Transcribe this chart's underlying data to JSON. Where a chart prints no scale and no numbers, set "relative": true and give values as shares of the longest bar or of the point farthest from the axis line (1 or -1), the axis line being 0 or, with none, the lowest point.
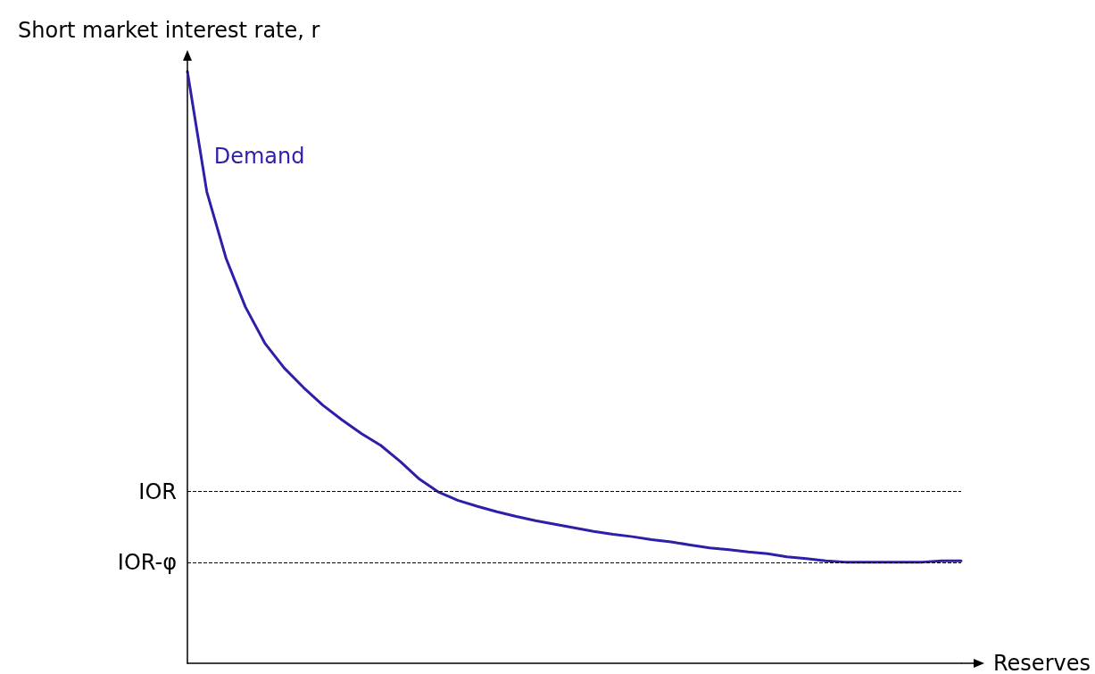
{
  "chart_data": {
    "type": "line",
    "relative": true,
    "ylabel": "Short market interest rate, r",
    "xlabel": "Reserves",
    "categories": [
      null,
      null,
      null,
      null,
      null,
      null,
      null,
      null,
      null,
      null,
      null,
      null,
      null,
      null,
      null,
      null,
      null,
      null,
      null,
      null,
      null,
      null,
      null,
      null,
      null,
      null,
      null,
      null,
      null,
      null,
      null,
      null,
      null,
      null,
      null,
      null,
      null,
      null,
      null,
      null,
      null
    ],
    "series": [
      {
        "name": "Demand",
        "color": "#2e1fa8",
        "values": [
          1.0,
          0.797,
          0.684,
          0.602,
          0.541,
          0.499,
          0.466,
          0.436,
          0.411,
          0.388,
          0.368,
          0.341,
          0.311,
          0.289,
          0.275,
          0.265,
          0.256,
          0.248,
          0.241,
          0.235,
          0.229,
          0.223,
          0.218,
          0.214,
          0.209,
          0.205,
          0.2,
          0.195,
          0.192,
          0.188,
          0.185,
          0.18,
          0.177,
          0.173,
          0.171,
          0.171,
          0.171,
          0.171,
          0.171,
          0.173,
          0.173
        ]
      }
    ],
    "ref_lines": [
      {
        "axis": "y",
        "value": 0.29,
        "label": "IOR",
        "color": "#000000",
        "line_style": "dashed"
      },
      {
        "axis": "y",
        "value": 0.171,
        "label": "IOR-φ",
        "color": "#000000",
        "line_style": "dashed"
      }
    ],
    "grid": false,
    "legend": false,
    "marker": "none",
    "line_style": "solid"
  }
}
